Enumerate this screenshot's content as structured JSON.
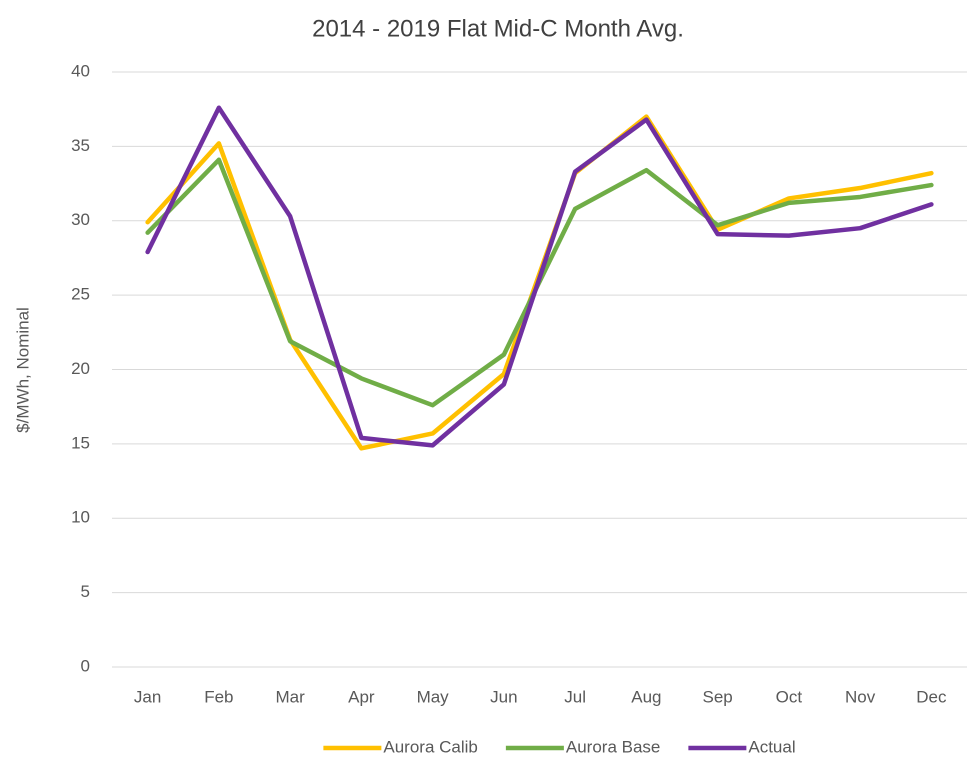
{
  "chart_data": {
    "type": "line",
    "title": "2014 - 2019 Flat Mid-C Month Avg.",
    "ylabel": "$/MWh, Nominal",
    "categories": [
      "Jan",
      "Feb",
      "Mar",
      "Apr",
      "May",
      "Jun",
      "Jul",
      "Aug",
      "Sep",
      "Oct",
      "Nov",
      "Dec"
    ],
    "series": [
      {
        "name": "Aurora Calib",
        "color": "#ffc000",
        "values": [
          29.9,
          35.2,
          22.0,
          14.7,
          15.7,
          19.7,
          33.2,
          37.0,
          29.4,
          31.5,
          32.2,
          33.2
        ]
      },
      {
        "name": "Aurora Base",
        "color": "#70ad47",
        "values": [
          29.2,
          34.1,
          21.9,
          19.4,
          17.6,
          21.0,
          30.8,
          33.4,
          29.7,
          31.2,
          31.6,
          32.4
        ]
      },
      {
        "name": "Actual",
        "color": "#7030a0",
        "values": [
          27.9,
          37.6,
          30.3,
          15.4,
          14.9,
          19.0,
          33.3,
          36.8,
          29.1,
          29.0,
          29.5,
          31.1
        ]
      }
    ],
    "ylim": [
      0,
      40
    ],
    "yticks": [
      0,
      5,
      10,
      15,
      20,
      25,
      30,
      35,
      40
    ],
    "grid": true,
    "legend": "bottom"
  }
}
